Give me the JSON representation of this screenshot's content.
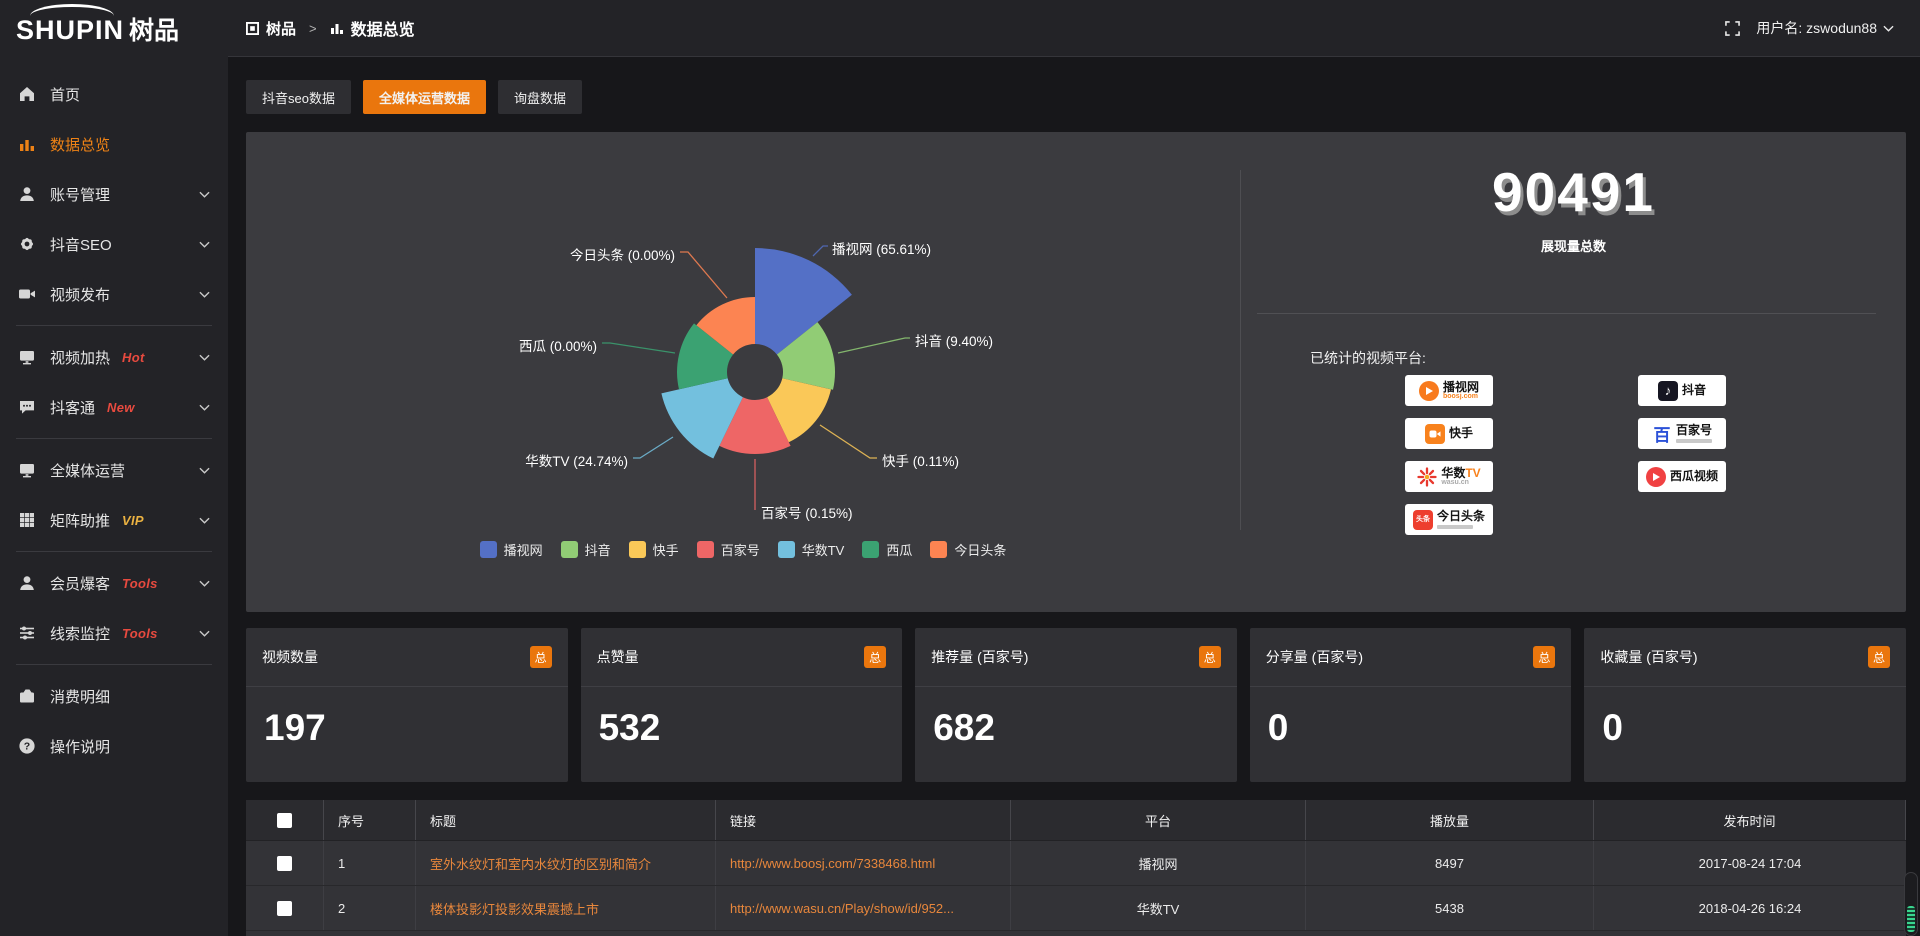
{
  "header": {
    "logo_text": "SHUPIN",
    "logo_cn": "树品",
    "breadcrumb": {
      "root": "树品",
      "separator": ">",
      "current": "数据总览"
    },
    "user_label": "用户名: zswodun88"
  },
  "sidebar": {
    "items": [
      {
        "label": "首页",
        "icon": "home"
      },
      {
        "label": "数据总览",
        "icon": "chart",
        "active": true
      },
      {
        "label": "账号管理",
        "icon": "user",
        "chevron": true
      },
      {
        "label": "抖音SEO",
        "icon": "gear",
        "chevron": true
      },
      {
        "label": "视频发布",
        "icon": "video",
        "chevron": true
      },
      {
        "divider": true
      },
      {
        "label": "视频加热",
        "icon": "monitor",
        "badge": "Hot",
        "badge_color": "#e84a3f",
        "chevron": true
      },
      {
        "label": "抖客通",
        "icon": "chat",
        "badge": "New",
        "badge_color": "#e84a3f",
        "chevron": true
      },
      {
        "divider": true
      },
      {
        "label": "全媒体运营",
        "icon": "screen",
        "chevron": true
      },
      {
        "label": "矩阵助推",
        "icon": "grid",
        "badge": "VIP",
        "badge_color": "#eab141",
        "chevron": true
      },
      {
        "divider": true
      },
      {
        "label": "会员爆客",
        "icon": "person",
        "badge": "Tools",
        "badge_color": "#e84a3f",
        "chevron": true
      },
      {
        "label": "线索监控",
        "icon": "sliders",
        "badge": "Tools",
        "badge_color": "#e84a3f",
        "chevron": true
      },
      {
        "divider": true
      },
      {
        "label": "消费明细",
        "icon": "wallet"
      },
      {
        "label": "操作说明",
        "icon": "help"
      }
    ]
  },
  "tabs": [
    {
      "label": "抖音seo数据",
      "active": false
    },
    {
      "label": "全媒体运营数据",
      "active": true
    },
    {
      "label": "询盘数据",
      "active": false
    }
  ],
  "chart_data": {
    "type": "pie",
    "rose": true,
    "legend_position": "bottom",
    "inner_radius_px": 28,
    "slices": [
      {
        "name": "播视网",
        "pct": "65.61%",
        "value_pct": 65.61,
        "color": "#5470c6",
        "radius": 124
      },
      {
        "name": "抖音",
        "pct": "9.40%",
        "value_pct": 9.4,
        "color": "#91cc75",
        "radius": 80
      },
      {
        "name": "快手",
        "pct": "0.11%",
        "value_pct": 0.11,
        "color": "#fac858",
        "radius": 78
      },
      {
        "name": "百家号",
        "pct": "0.15%",
        "value_pct": 0.15,
        "color": "#ee6666",
        "radius": 82
      },
      {
        "name": "华数TV",
        "pct": "24.74%",
        "value_pct": 24.74,
        "color": "#73c0de",
        "radius": 96
      },
      {
        "name": "西瓜",
        "pct": "0.00%",
        "value_pct": 0,
        "color": "#3ba272",
        "radius": 78
      },
      {
        "name": "今日头条",
        "pct": "0.00%",
        "value_pct": 0,
        "color": "#fc8452",
        "radius": 75
      }
    ]
  },
  "summary": {
    "total": "90491",
    "total_label": "展现量总数",
    "platforms_label": "已统计的视频平台:",
    "platforms": [
      {
        "name": "播视网",
        "logo": "boosj",
        "sub": "boosj.com",
        "sub_color": "#f8821d"
      },
      {
        "name": "抖音",
        "logo": "douyin"
      },
      {
        "name": "快手",
        "logo": "kuaishou"
      },
      {
        "name": "百家号",
        "logo": "baijia",
        "sub_bar": true
      },
      {
        "name": "华数",
        "name2": "TV",
        "logo": "wasu",
        "sub": "wasu.cn",
        "sub_color": "#a9a9a9"
      },
      {
        "name": "西瓜视频",
        "logo": "xigua"
      },
      {
        "name": "今日头条",
        "logo": "toutiao",
        "sub_bar": true
      }
    ]
  },
  "stat_cards": [
    {
      "label": "视频数量",
      "badge": "总",
      "value": "197"
    },
    {
      "label": "点赞量",
      "badge": "总",
      "value": "532"
    },
    {
      "label": "推荐量 (百家号)",
      "badge": "总",
      "value": "682"
    },
    {
      "label": "分享量 (百家号)",
      "badge": "总",
      "value": "0"
    },
    {
      "label": "收藏量 (百家号)",
      "badge": "总",
      "value": "0"
    }
  ],
  "table": {
    "columns": [
      "",
      "序号",
      "标题",
      "链接",
      "平台",
      "播放量",
      "发布时间"
    ],
    "rows": [
      {
        "seq": "1",
        "title": "室外水纹灯和室内水纹灯的区别和简介",
        "link": "http://www.boosj.com/7338468.html",
        "platform": "播视网",
        "plays": "8497",
        "time": "2017-08-24 17:04"
      },
      {
        "seq": "2",
        "title": "楼体投影灯投影效果震撼上市",
        "link": "http://www.wasu.cn/Play/show/id/952...",
        "platform": "华数TV",
        "plays": "5438",
        "time": "2018-04-26 16:24"
      }
    ]
  }
}
